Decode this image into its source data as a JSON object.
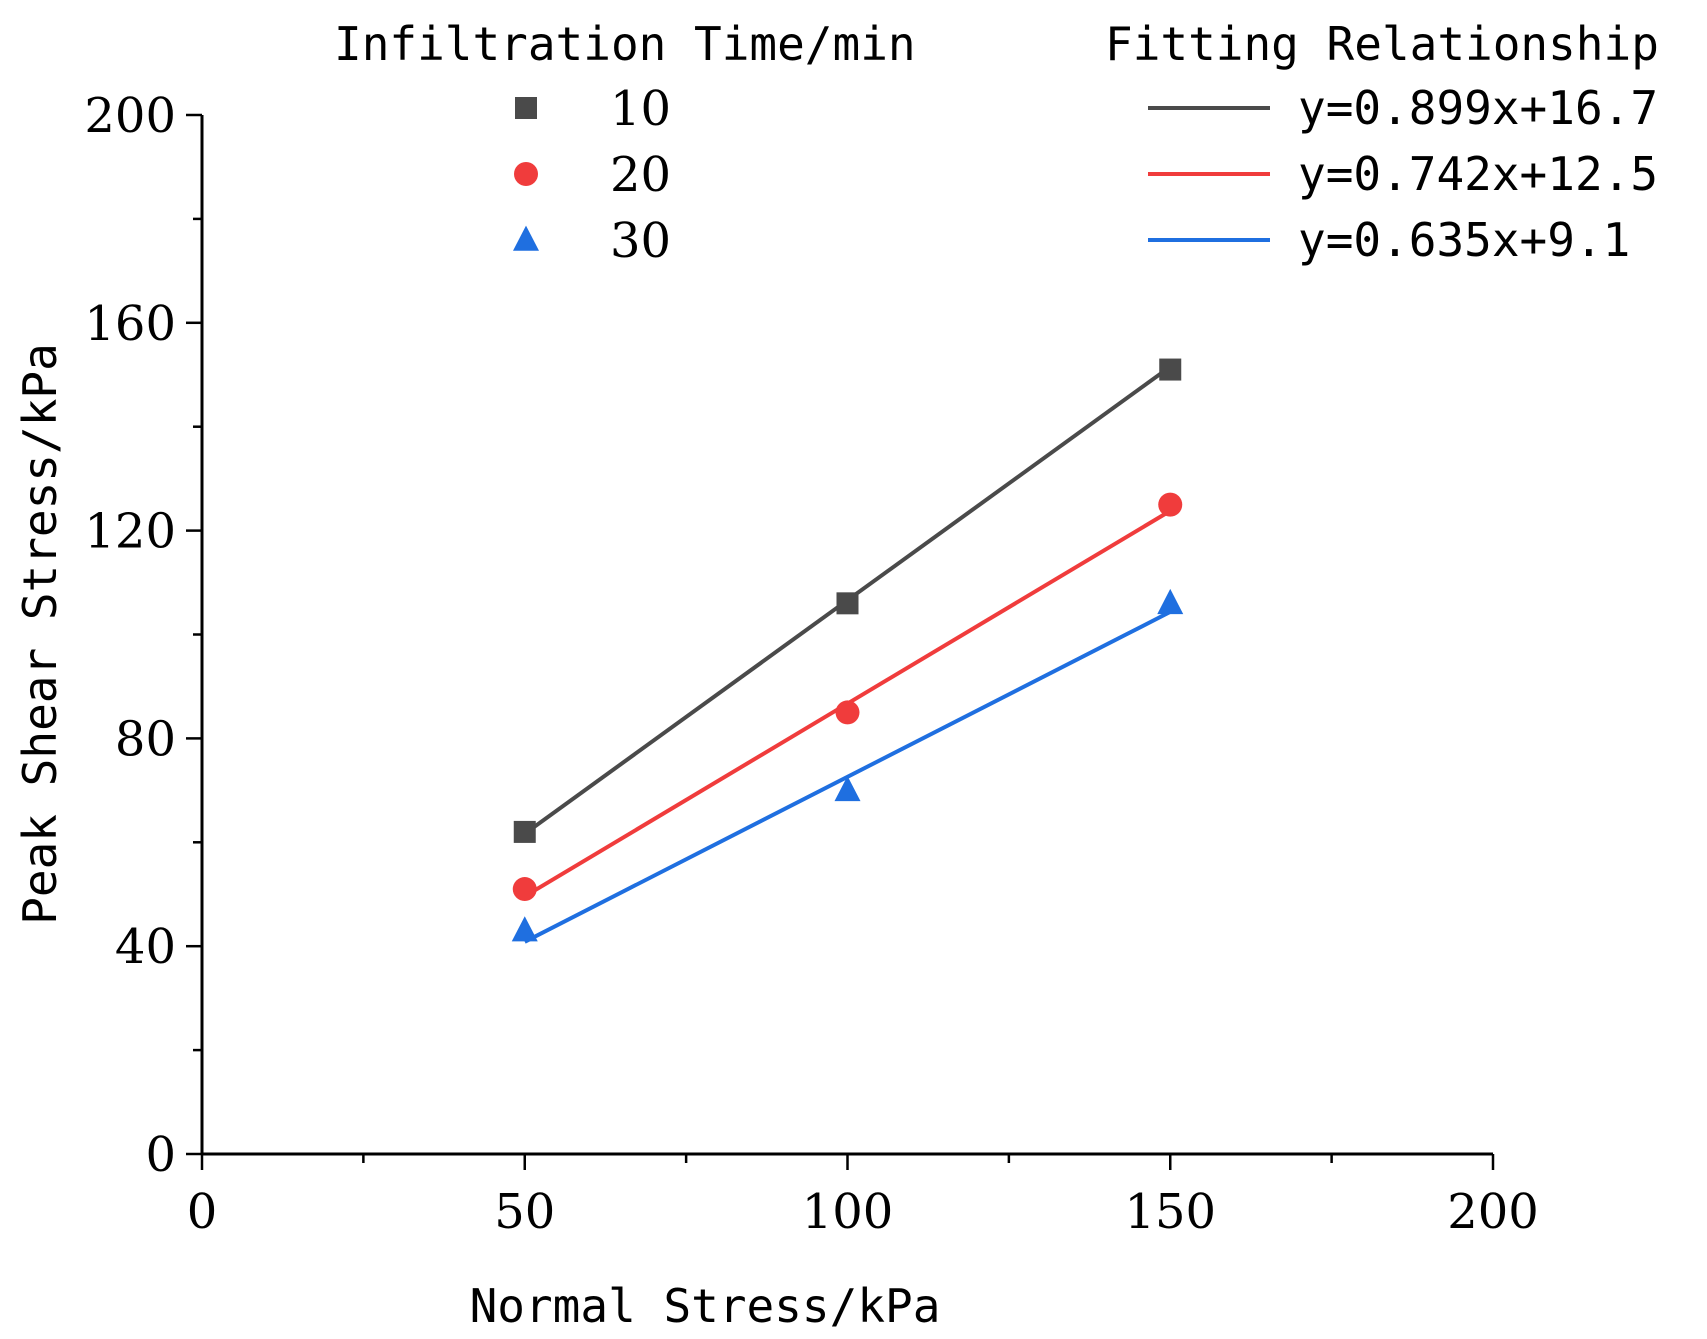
{
  "chart_data": {
    "type": "scatter",
    "xlabel": "Normal Stress/kPa",
    "ylabel": "Peak Shear Stress/kPa",
    "xlim": [
      0,
      200
    ],
    "ylim": [
      0,
      200
    ],
    "x_ticks": [
      0,
      50,
      100,
      150,
      200
    ],
    "y_ticks": [
      0,
      40,
      80,
      120,
      160,
      200
    ],
    "x_tick_labels": [
      "0",
      "50",
      "100",
      "150",
      "200"
    ],
    "y_tick_labels": [
      "0",
      "40",
      "80",
      "120",
      "160",
      "200"
    ],
    "grid": false,
    "legend": {
      "markers_title": "Infiltration Time/min",
      "fits_title": "Fitting Relationship",
      "placement": "top"
    },
    "series": [
      {
        "name": "10",
        "marker": "square",
        "color": "#4a4a4a",
        "x": [
          50,
          100,
          150
        ],
        "y": [
          62,
          106,
          151
        ],
        "fit": {
          "label": "y=0.899x+16.7",
          "slope": 0.899,
          "intercept": 16.7
        }
      },
      {
        "name": "20",
        "marker": "circle",
        "color": "#f03c3c",
        "x": [
          50,
          100,
          150
        ],
        "y": [
          51,
          85,
          125
        ],
        "fit": {
          "label": "y=0.742x+12.5",
          "slope": 0.742,
          "intercept": 12.5
        }
      },
      {
        "name": "30",
        "marker": "triangle",
        "color": "#1f6fe0",
        "x": [
          50,
          100,
          150
        ],
        "y": [
          43,
          70,
          106
        ],
        "fit": {
          "label": "y=0.635x+9.1",
          "slope": 0.635,
          "intercept": 9.1
        }
      }
    ]
  }
}
